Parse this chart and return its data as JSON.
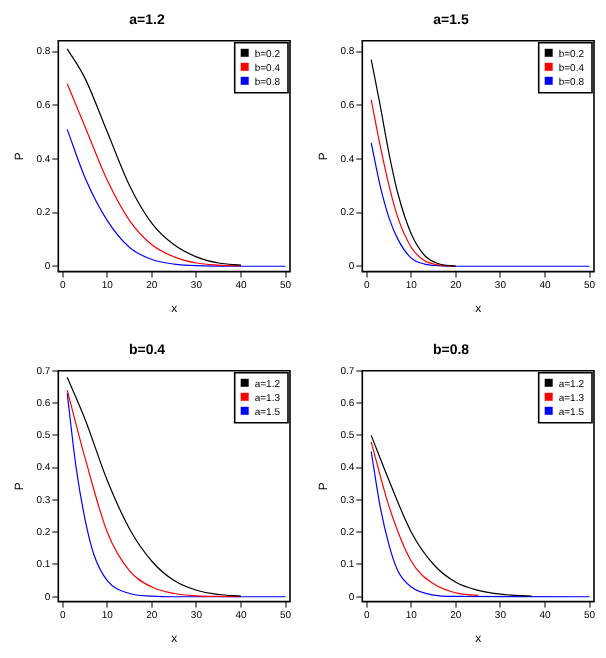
{
  "chart_data": [
    {
      "type": "line",
      "title": "a=1.2",
      "xlabel": "x",
      "ylabel": "P",
      "xlim": [
        -1,
        51
      ],
      "xticks": [
        0,
        10,
        20,
        30,
        40,
        50
      ],
      "ylim": [
        -0.02,
        0.84
      ],
      "yticks": [
        0,
        0.2,
        0.4,
        0.6,
        0.8
      ],
      "legend": "top right",
      "marker": "none",
      "line_style": "solid",
      "grid": false,
      "series": [
        {
          "name": "b=0.2",
          "color": "#000000",
          "x": [
            1,
            5,
            10,
            15,
            20,
            25,
            30,
            35,
            40
          ],
          "values": [
            0.81,
            0.7,
            0.5,
            0.3,
            0.16,
            0.08,
            0.035,
            0.012,
            0.004
          ]
        },
        {
          "name": "b=0.4",
          "color": "#ff0000",
          "x": [
            1,
            5,
            10,
            15,
            20,
            25,
            30,
            35,
            40
          ],
          "values": [
            0.68,
            0.52,
            0.32,
            0.17,
            0.08,
            0.035,
            0.012,
            0.004,
            0.001
          ]
        },
        {
          "name": "b=0.8",
          "color": "#0000ff",
          "x": [
            1,
            5,
            10,
            15,
            20,
            25,
            30,
            40,
            50
          ],
          "values": [
            0.51,
            0.33,
            0.17,
            0.07,
            0.025,
            0.008,
            0.002,
            0,
            0
          ]
        }
      ]
    },
    {
      "type": "line",
      "title": "a=1.5",
      "xlabel": "x",
      "ylabel": "P",
      "xlim": [
        -1,
        51
      ],
      "xticks": [
        0,
        10,
        20,
        30,
        40,
        50
      ],
      "ylim": [
        -0.02,
        0.84
      ],
      "yticks": [
        0,
        0.2,
        0.4,
        0.6,
        0.8
      ],
      "legend": "top right",
      "marker": "none",
      "line_style": "solid",
      "grid": false,
      "series": [
        {
          "name": "b=0.2",
          "color": "#000000",
          "x": [
            1,
            3,
            5,
            7,
            10,
            13,
            16,
            20
          ],
          "values": [
            0.77,
            0.6,
            0.42,
            0.27,
            0.12,
            0.04,
            0.01,
            0
          ]
        },
        {
          "name": "b=0.4",
          "color": "#ff0000",
          "x": [
            1,
            3,
            5,
            7,
            10,
            13,
            16,
            20
          ],
          "values": [
            0.62,
            0.45,
            0.3,
            0.18,
            0.07,
            0.02,
            0.005,
            0
          ]
        },
        {
          "name": "b=0.8",
          "color": "#0000ff",
          "x": [
            1,
            3,
            5,
            7,
            10,
            13,
            16,
            20,
            50
          ],
          "values": [
            0.46,
            0.3,
            0.18,
            0.1,
            0.03,
            0.008,
            0.002,
            0,
            0
          ]
        }
      ]
    },
    {
      "type": "line",
      "title": "b=0.4",
      "xlabel": "x",
      "ylabel": "P",
      "xlim": [
        -1,
        51
      ],
      "xticks": [
        0,
        10,
        20,
        30,
        40,
        50
      ],
      "ylim": [
        -0.015,
        0.7
      ],
      "yticks": [
        0,
        0.1,
        0.2,
        0.3,
        0.4,
        0.5,
        0.6,
        0.7
      ],
      "legend": "top right",
      "marker": "none",
      "line_style": "solid",
      "grid": false,
      "series": [
        {
          "name": "a=1.2",
          "color": "#000000",
          "x": [
            1,
            5,
            10,
            15,
            20,
            25,
            30,
            35,
            40
          ],
          "values": [
            0.68,
            0.55,
            0.36,
            0.21,
            0.11,
            0.05,
            0.02,
            0.007,
            0.002
          ]
        },
        {
          "name": "a=1.3",
          "color": "#ff0000",
          "x": [
            1,
            5,
            10,
            15,
            20,
            25,
            30,
            35,
            40
          ],
          "values": [
            0.64,
            0.43,
            0.2,
            0.08,
            0.03,
            0.01,
            0.003,
            0.001,
            0
          ]
        },
        {
          "name": "a=1.5",
          "color": "#0000ff",
          "x": [
            1,
            3,
            5,
            7,
            10,
            15,
            20,
            25,
            50
          ],
          "values": [
            0.63,
            0.4,
            0.24,
            0.13,
            0.05,
            0.01,
            0.002,
            0,
            0
          ]
        }
      ]
    },
    {
      "type": "line",
      "title": "b=0.8",
      "xlabel": "x",
      "ylabel": "P",
      "xlim": [
        -1,
        51
      ],
      "xticks": [
        0,
        10,
        20,
        30,
        40,
        50
      ],
      "ylim": [
        -0.015,
        0.7
      ],
      "yticks": [
        0,
        0.1,
        0.2,
        0.3,
        0.4,
        0.5,
        0.6,
        0.7
      ],
      "legend": "top right",
      "marker": "none",
      "line_style": "solid",
      "grid": false,
      "series": [
        {
          "name": "a=1.2",
          "color": "#000000",
          "x": [
            1,
            5,
            10,
            15,
            20,
            25,
            30,
            37
          ],
          "values": [
            0.5,
            0.36,
            0.2,
            0.1,
            0.045,
            0.02,
            0.008,
            0.002
          ]
        },
        {
          "name": "a=1.3",
          "color": "#ff0000",
          "x": [
            1,
            5,
            10,
            15,
            20,
            25
          ],
          "values": [
            0.48,
            0.28,
            0.11,
            0.04,
            0.012,
            0.004
          ]
        },
        {
          "name": "a=1.5",
          "color": "#0000ff",
          "x": [
            1,
            3,
            5,
            7,
            10,
            15,
            20,
            50
          ],
          "values": [
            0.45,
            0.28,
            0.16,
            0.08,
            0.03,
            0.005,
            0.001,
            0
          ]
        }
      ]
    }
  ]
}
